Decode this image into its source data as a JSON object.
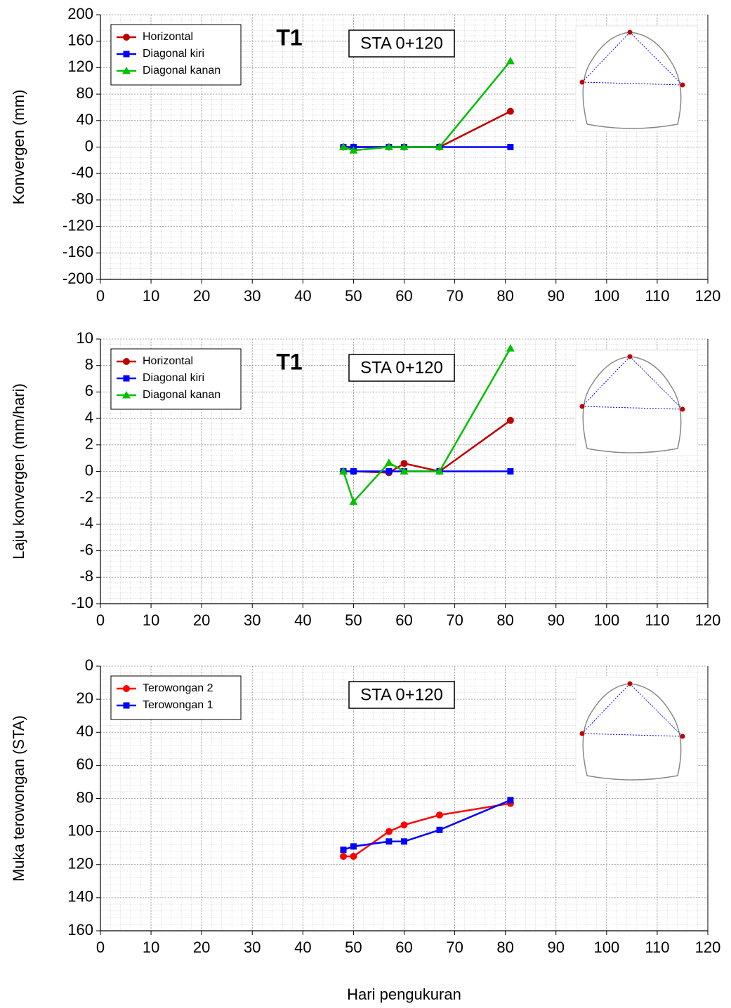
{
  "chart_data": [
    {
      "type": "line",
      "tag": "T1",
      "box_text": "STA 0+120",
      "y_label": "Konvergen (mm)",
      "x": [
        48,
        50,
        57,
        60,
        67,
        81
      ],
      "series": [
        {
          "name": "Horizontal",
          "color": "#c00000",
          "marker": "circle",
          "values": [
            0,
            0,
            0,
            0,
            0,
            54
          ]
        },
        {
          "name": "Diagonal kiri",
          "color": "#0000ff",
          "marker": "square",
          "values": [
            0,
            0,
            0,
            0,
            0,
            0
          ]
        },
        {
          "name": "Diagonal kanan",
          "color": "#00c000",
          "marker": "triangle",
          "values": [
            0,
            -5,
            0,
            0,
            0,
            130
          ]
        }
      ],
      "xlim": [
        0,
        120
      ],
      "xticks": [
        0,
        10,
        20,
        30,
        40,
        50,
        60,
        70,
        80,
        90,
        100,
        110,
        120
      ],
      "ylim": [
        -200,
        200
      ],
      "yticks": [
        -200,
        -160,
        -120,
        -80,
        -40,
        0,
        40,
        80,
        120,
        160,
        200
      ],
      "grid": true,
      "legend": "top-left"
    },
    {
      "type": "line",
      "tag": "T1",
      "box_text": "STA 0+120",
      "y_label": "Laju konvergen (mm/hari)",
      "x": [
        48,
        50,
        57,
        60,
        67,
        81
      ],
      "series": [
        {
          "name": "Horizontal",
          "color": "#c00000",
          "marker": "circle",
          "values": [
            0,
            0,
            -0.1,
            0.6,
            0,
            3.85
          ]
        },
        {
          "name": "Diagonal kiri",
          "color": "#0000ff",
          "marker": "square",
          "values": [
            0,
            0,
            0,
            0,
            0,
            0
          ]
        },
        {
          "name": "Diagonal kanan",
          "color": "#00c000",
          "marker": "triangle",
          "values": [
            0,
            -2.3,
            0.65,
            0,
            0,
            9.3
          ]
        }
      ],
      "xlim": [
        0,
        120
      ],
      "xticks": [
        0,
        10,
        20,
        30,
        40,
        50,
        60,
        70,
        80,
        90,
        100,
        110,
        120
      ],
      "ylim": [
        -10,
        10
      ],
      "yticks": [
        -10,
        -8,
        -6,
        -4,
        -2,
        0,
        2,
        4,
        6,
        8,
        10
      ],
      "grid": true,
      "legend": "top-left"
    },
    {
      "type": "line",
      "box_text": "STA 0+120",
      "y_label": "Muka terowongan (STA)",
      "x_label": "Hari pengukuran",
      "x": [
        48,
        50,
        57,
        60,
        67,
        81
      ],
      "series": [
        {
          "name": "Terowongan 2",
          "color": "#ff0000",
          "marker": "circle",
          "values": [
            115,
            115,
            100,
            96,
            90,
            83
          ]
        },
        {
          "name": "Terowongan 1",
          "color": "#0000ff",
          "marker": "square",
          "values": [
            111,
            109,
            106,
            106,
            99,
            81
          ]
        }
      ],
      "xlim": [
        0,
        120
      ],
      "xticks": [
        0,
        10,
        20,
        30,
        40,
        50,
        60,
        70,
        80,
        90,
        100,
        110,
        120
      ],
      "ylim": [
        0,
        160
      ],
      "yticks": [
        0,
        20,
        40,
        60,
        80,
        100,
        120,
        140,
        160
      ],
      "y_reversed": true,
      "grid": true,
      "legend": "top-left"
    }
  ]
}
